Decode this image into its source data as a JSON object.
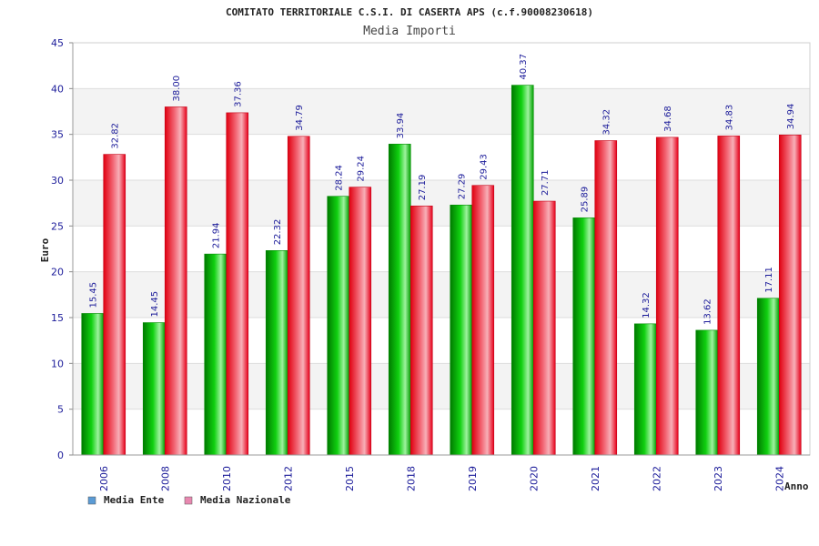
{
  "chart_data": {
    "type": "bar",
    "title": "COMITATO TERRITORIALE C.S.I. DI CASERTA APS (c.f.90008230618)",
    "subtitle": "Media Importi",
    "xlabel": "Anno",
    "ylabel": "Euro",
    "ylim": [
      0,
      45
    ],
    "yticks": [
      "0",
      "5",
      "10",
      "15",
      "20",
      "25",
      "30",
      "35",
      "40",
      "45"
    ],
    "grid": true,
    "legend_position": "bottom-left",
    "categories": [
      "2006",
      "2008",
      "2010",
      "2012",
      "2015",
      "2018",
      "2019",
      "2020",
      "2021",
      "2022",
      "2023",
      "2024"
    ],
    "series": [
      {
        "name": "Media Ente",
        "color": "#00b400",
        "legend_color": "#5b9bd5",
        "values": [
          15.45,
          14.45,
          21.94,
          22.32,
          28.24,
          33.94,
          27.29,
          40.37,
          25.89,
          14.32,
          13.62,
          17.11
        ],
        "labels": [
          "15.45",
          "14.45",
          "21.94",
          "22.32",
          "28.24",
          "33.94",
          "27.29",
          "40.37",
          "25.89",
          "14.32",
          "13.62",
          "17.11"
        ]
      },
      {
        "name": "Media Nazionale",
        "color": "#ee1c2b",
        "legend_color": "#e888b0",
        "values": [
          32.82,
          38.0,
          37.36,
          34.79,
          29.24,
          27.19,
          29.43,
          27.71,
          34.32,
          34.68,
          34.83,
          34.94
        ],
        "labels": [
          "32.82",
          "38.00",
          "37.36",
          "34.79",
          "29.24",
          "27.19",
          "29.43",
          "27.71",
          "34.32",
          "34.68",
          "34.83",
          "34.94"
        ]
      }
    ]
  }
}
